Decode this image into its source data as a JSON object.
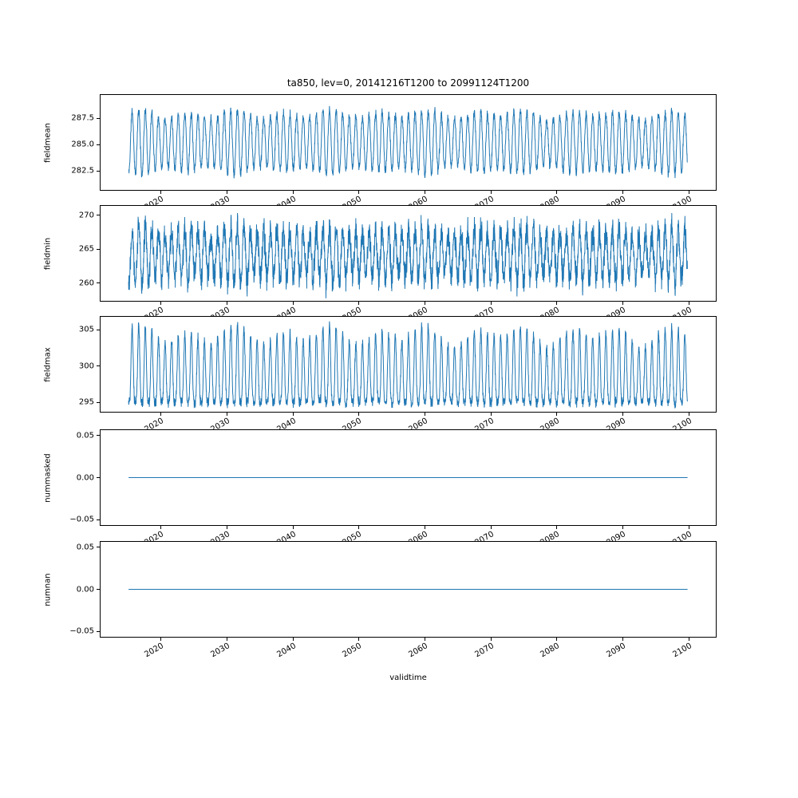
{
  "chart_data": {
    "type": "line",
    "title": "ta850, lev=0, 20141216T1200 to 20991124T1200",
    "xlabel": "validtime",
    "line_color": "#1f77b4",
    "xlim": [
      2010.7,
      2104.2
    ],
    "x_start": 2014.96,
    "x_end": 2099.9,
    "step": 0.025,
    "xticks": [
      {
        "v": 2020,
        "label": "2020"
      },
      {
        "v": 2030,
        "label": "2030"
      },
      {
        "v": 2040,
        "label": "2040"
      },
      {
        "v": 2050,
        "label": "2050"
      },
      {
        "v": 2060,
        "label": "2060"
      },
      {
        "v": 2070,
        "label": "2070"
      },
      {
        "v": 2080,
        "label": "2080"
      },
      {
        "v": 2090,
        "label": "2090"
      },
      {
        "v": 2100,
        "label": "2100"
      }
    ],
    "subplots": [
      {
        "name": "fieldmean",
        "ylabel": "fieldmean",
        "ylim": [
          280.6,
          289.8
        ],
        "yticks": [
          {
            "v": 282.5,
            "label": "282.5"
          },
          {
            "v": 285.0,
            "label": "285.0"
          },
          {
            "v": 287.5,
            "label": "287.5"
          }
        ],
        "signal": {
          "kind": "seasonal",
          "shape": "sine",
          "base": 285.2,
          "amplitude": 2.7,
          "noise": 0.55,
          "period": 1,
          "seed": 11,
          "spikes": [
            {
              "x": 2049.45,
              "dy": 0.9
            }
          ]
        }
      },
      {
        "name": "fieldmin",
        "ylabel": "fieldmin",
        "ylim": [
          257.3,
          271.5
        ],
        "yticks": [
          {
            "v": 260,
            "label": "260"
          },
          {
            "v": 265,
            "label": "265"
          },
          {
            "v": 270,
            "label": "270"
          }
        ],
        "signal": {
          "kind": "seasonal",
          "shape": "sine",
          "base": 264.2,
          "amplitude": 3.6,
          "noise": 2.6,
          "period": 1,
          "seed": 22,
          "spikes": [
            {
              "x": 2016.4,
              "dy": 1.0
            },
            {
              "x": 2047.6,
              "dy": -0.9
            }
          ]
        }
      },
      {
        "name": "fieldmax",
        "ylabel": "fieldmax",
        "ylim": [
          293.6,
          306.9
        ],
        "yticks": [
          {
            "v": 295,
            "label": "295"
          },
          {
            "v": 300,
            "label": "300"
          },
          {
            "v": 305,
            "label": "305"
          }
        ],
        "signal": {
          "kind": "seasonal",
          "shape": "bottom-heavy",
          "base": 294.9,
          "amplitude": 9.4,
          "noise": 0.9,
          "period": 1,
          "seed": 33,
          "spikes": [
            {
              "x": 2077.3,
              "dy": 0.4
            }
          ]
        }
      },
      {
        "name": "nummasked",
        "ylabel": "nummasked",
        "ylim": [
          -0.0575,
          0.0575
        ],
        "yticks": [
          {
            "v": -0.05,
            "label": "−0.05"
          },
          {
            "v": 0.0,
            "label": "0.00"
          },
          {
            "v": 0.05,
            "label": "0.05"
          }
        ],
        "signal": {
          "kind": "constant",
          "value": 0.0
        }
      },
      {
        "name": "numnan",
        "ylabel": "numnan",
        "ylim": [
          -0.0575,
          0.0575
        ],
        "yticks": [
          {
            "v": -0.05,
            "label": "−0.05"
          },
          {
            "v": 0.0,
            "label": "0.00"
          },
          {
            "v": 0.05,
            "label": "0.05"
          }
        ],
        "signal": {
          "kind": "constant",
          "value": 0.0
        }
      }
    ]
  }
}
